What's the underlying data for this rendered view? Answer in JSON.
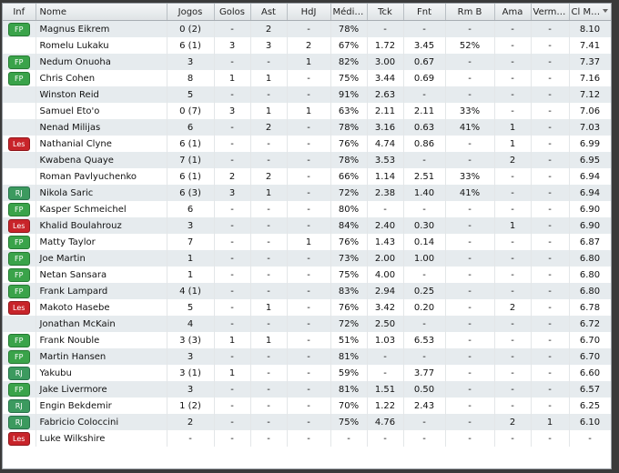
{
  "columns": {
    "inf": "Inf",
    "nome": "Nome",
    "jogos": "Jogos",
    "golos": "Golos",
    "ast": "Ast",
    "hdj": "HdJ",
    "media": "Média ...",
    "tck": "Tck",
    "fnt": "Fnt",
    "rmb": "Rm B",
    "ama": "Ama",
    "verm": "Vermel...",
    "clmed": "Cl Med"
  },
  "players": [
    {
      "inf": "FP",
      "nome": "Magnus Eikrem",
      "jogos": "0 (2)",
      "golos": "-",
      "ast": "2",
      "hdj": "-",
      "media": "78%",
      "tck": "-",
      "fnt": "-",
      "rmb": "-",
      "ama": "-",
      "verm": "-",
      "clmed": "8.10"
    },
    {
      "inf": "",
      "nome": "Romelu Lukaku",
      "jogos": "6 (1)",
      "golos": "3",
      "ast": "3",
      "hdj": "2",
      "media": "67%",
      "tck": "1.72",
      "fnt": "3.45",
      "rmb": "52%",
      "ama": "-",
      "verm": "-",
      "clmed": "7.41"
    },
    {
      "inf": "FP",
      "nome": "Nedum Onuoha",
      "jogos": "3",
      "golos": "-",
      "ast": "-",
      "hdj": "1",
      "media": "82%",
      "tck": "3.00",
      "fnt": "0.67",
      "rmb": "-",
      "ama": "-",
      "verm": "-",
      "clmed": "7.37"
    },
    {
      "inf": "FP",
      "nome": "Chris Cohen",
      "jogos": "8",
      "golos": "1",
      "ast": "1",
      "hdj": "-",
      "media": "75%",
      "tck": "3.44",
      "fnt": "0.69",
      "rmb": "-",
      "ama": "-",
      "verm": "-",
      "clmed": "7.16"
    },
    {
      "inf": "",
      "nome": "Winston Reid",
      "jogos": "5",
      "golos": "-",
      "ast": "-",
      "hdj": "-",
      "media": "91%",
      "tck": "2.63",
      "fnt": "-",
      "rmb": "-",
      "ama": "-",
      "verm": "-",
      "clmed": "7.12"
    },
    {
      "inf": "",
      "nome": "Samuel Eto'o",
      "jogos": "0 (7)",
      "golos": "3",
      "ast": "1",
      "hdj": "1",
      "media": "63%",
      "tck": "2.11",
      "fnt": "2.11",
      "rmb": "33%",
      "ama": "-",
      "verm": "-",
      "clmed": "7.06"
    },
    {
      "inf": "",
      "nome": "Nenad Milijas",
      "jogos": "6",
      "golos": "-",
      "ast": "2",
      "hdj": "-",
      "media": "78%",
      "tck": "3.16",
      "fnt": "0.63",
      "rmb": "41%",
      "ama": "1",
      "verm": "-",
      "clmed": "7.03"
    },
    {
      "inf": "Les",
      "nome": "Nathanial Clyne",
      "jogos": "6 (1)",
      "golos": "-",
      "ast": "-",
      "hdj": "-",
      "media": "76%",
      "tck": "4.74",
      "fnt": "0.86",
      "rmb": "-",
      "ama": "1",
      "verm": "-",
      "clmed": "6.99"
    },
    {
      "inf": "",
      "nome": "Kwabena Quaye",
      "jogos": "7 (1)",
      "golos": "-",
      "ast": "-",
      "hdj": "-",
      "media": "78%",
      "tck": "3.53",
      "fnt": "-",
      "rmb": "-",
      "ama": "2",
      "verm": "-",
      "clmed": "6.95"
    },
    {
      "inf": "",
      "nome": "Roman Pavlyuchenko",
      "jogos": "6 (1)",
      "golos": "2",
      "ast": "2",
      "hdj": "-",
      "media": "66%",
      "tck": "1.14",
      "fnt": "2.51",
      "rmb": "33%",
      "ama": "-",
      "verm": "-",
      "clmed": "6.94"
    },
    {
      "inf": "RJ",
      "nome": "Nikola Saric",
      "jogos": "6 (3)",
      "golos": "3",
      "ast": "1",
      "hdj": "-",
      "media": "72%",
      "tck": "2.38",
      "fnt": "1.40",
      "rmb": "41%",
      "ama": "-",
      "verm": "-",
      "clmed": "6.94"
    },
    {
      "inf": "FP",
      "nome": "Kasper Schmeichel",
      "jogos": "6",
      "golos": "-",
      "ast": "-",
      "hdj": "-",
      "media": "80%",
      "tck": "-",
      "fnt": "-",
      "rmb": "-",
      "ama": "-",
      "verm": "-",
      "clmed": "6.90"
    },
    {
      "inf": "Les",
      "nome": "Khalid Boulahrouz",
      "jogos": "3",
      "golos": "-",
      "ast": "-",
      "hdj": "-",
      "media": "84%",
      "tck": "2.40",
      "fnt": "0.30",
      "rmb": "-",
      "ama": "1",
      "verm": "-",
      "clmed": "6.90"
    },
    {
      "inf": "FP",
      "nome": "Matty Taylor",
      "jogos": "7",
      "golos": "-",
      "ast": "-",
      "hdj": "1",
      "media": "76%",
      "tck": "1.43",
      "fnt": "0.14",
      "rmb": "-",
      "ama": "-",
      "verm": "-",
      "clmed": "6.87"
    },
    {
      "inf": "FP",
      "nome": "Joe Martin",
      "jogos": "1",
      "golos": "-",
      "ast": "-",
      "hdj": "-",
      "media": "73%",
      "tck": "2.00",
      "fnt": "1.00",
      "rmb": "-",
      "ama": "-",
      "verm": "-",
      "clmed": "6.80"
    },
    {
      "inf": "FP",
      "nome": "Netan Sansara",
      "jogos": "1",
      "golos": "-",
      "ast": "-",
      "hdj": "-",
      "media": "75%",
      "tck": "4.00",
      "fnt": "-",
      "rmb": "-",
      "ama": "-",
      "verm": "-",
      "clmed": "6.80"
    },
    {
      "inf": "FP",
      "nome": "Frank Lampard",
      "jogos": "4 (1)",
      "golos": "-",
      "ast": "-",
      "hdj": "-",
      "media": "83%",
      "tck": "2.94",
      "fnt": "0.25",
      "rmb": "-",
      "ama": "-",
      "verm": "-",
      "clmed": "6.80"
    },
    {
      "inf": "Les",
      "nome": "Makoto Hasebe",
      "jogos": "5",
      "golos": "-",
      "ast": "1",
      "hdj": "-",
      "media": "76%",
      "tck": "3.42",
      "fnt": "0.20",
      "rmb": "-",
      "ama": "2",
      "verm": "-",
      "clmed": "6.78"
    },
    {
      "inf": "",
      "nome": "Jonathan McKain",
      "jogos": "4",
      "golos": "-",
      "ast": "-",
      "hdj": "-",
      "media": "72%",
      "tck": "2.50",
      "fnt": "-",
      "rmb": "-",
      "ama": "-",
      "verm": "-",
      "clmed": "6.72"
    },
    {
      "inf": "FP",
      "nome": "Frank Nouble",
      "jogos": "3 (3)",
      "golos": "1",
      "ast": "1",
      "hdj": "-",
      "media": "51%",
      "tck": "1.03",
      "fnt": "6.53",
      "rmb": "-",
      "ama": "-",
      "verm": "-",
      "clmed": "6.70"
    },
    {
      "inf": "FP",
      "nome": "Martin Hansen",
      "jogos": "3",
      "golos": "-",
      "ast": "-",
      "hdj": "-",
      "media": "81%",
      "tck": "-",
      "fnt": "-",
      "rmb": "-",
      "ama": "-",
      "verm": "-",
      "clmed": "6.70"
    },
    {
      "inf": "RJ",
      "nome": "Yakubu",
      "jogos": "3 (1)",
      "golos": "1",
      "ast": "-",
      "hdj": "-",
      "media": "59%",
      "tck": "-",
      "fnt": "3.77",
      "rmb": "-",
      "ama": "-",
      "verm": "-",
      "clmed": "6.60"
    },
    {
      "inf": "FP",
      "nome": "Jake Livermore",
      "jogos": "3",
      "golos": "-",
      "ast": "-",
      "hdj": "-",
      "media": "81%",
      "tck": "1.51",
      "fnt": "0.50",
      "rmb": "-",
      "ama": "-",
      "verm": "-",
      "clmed": "6.57"
    },
    {
      "inf": "RJ",
      "nome": "Engin Bekdemir",
      "jogos": "1 (2)",
      "golos": "-",
      "ast": "-",
      "hdj": "-",
      "media": "70%",
      "tck": "1.22",
      "fnt": "2.43",
      "rmb": "-",
      "ama": "-",
      "verm": "-",
      "clmed": "6.25"
    },
    {
      "inf": "RJ",
      "nome": "Fabricio Coloccini",
      "jogos": "2",
      "golos": "-",
      "ast": "-",
      "hdj": "-",
      "media": "75%",
      "tck": "4.76",
      "fnt": "-",
      "rmb": "-",
      "ama": "2",
      "verm": "1",
      "clmed": "6.10"
    },
    {
      "inf": "Les",
      "nome": "Luke Wilkshire",
      "jogos": "-",
      "golos": "-",
      "ast": "-",
      "hdj": "-",
      "media": "-",
      "tck": "-",
      "fnt": "-",
      "rmb": "-",
      "ama": "-",
      "verm": "-",
      "clmed": "-"
    }
  ],
  "badge_colors": {
    "FP": "#3aa34a",
    "RJ": "#3c9a5f",
    "Les": "#c8242a"
  }
}
